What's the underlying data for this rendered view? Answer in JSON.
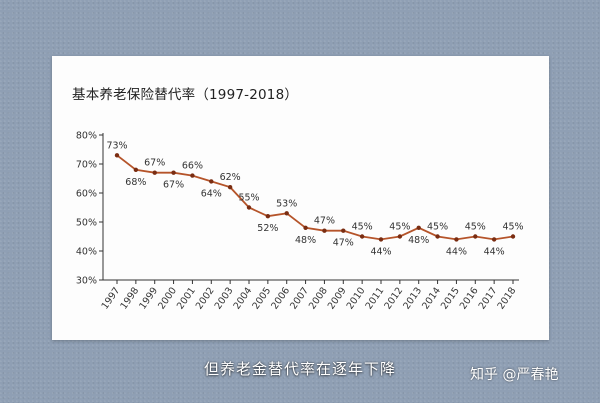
{
  "card": {
    "title": "基本养老保险替代率（1997-2018）"
  },
  "overlay": {
    "subtitle": "但养老金替代率在逐年下降",
    "watermark": "知乎 @严春艳"
  },
  "colors": {
    "line": "#b5542a",
    "point": "#7a2d12",
    "axis": "#333333",
    "background": "#8f9fb4"
  },
  "chart_data": {
    "type": "line",
    "title": "基本养老保险替代率（1997-2018）",
    "categories": [
      "1997",
      "1998",
      "1999",
      "2000",
      "2001",
      "2002",
      "2003",
      "2004",
      "2005",
      "2006",
      "2007",
      "2008",
      "2009",
      "2010",
      "2011",
      "2012",
      "2013",
      "2014",
      "2015",
      "2016",
      "2017",
      "2018"
    ],
    "values": [
      73,
      68,
      67,
      67,
      66,
      64,
      62,
      55,
      52,
      53,
      48,
      47,
      47,
      45,
      44,
      45,
      48,
      45,
      44,
      45,
      44,
      45
    ],
    "data_labels": [
      "73%",
      "68%",
      "67%",
      "67%",
      "66%",
      "64%",
      "62%",
      "55%",
      "52%",
      "53%",
      "48%",
      "47%",
      "47%",
      "45%",
      "44%",
      "45%",
      "48%",
      "45%",
      "44%",
      "45%",
      "44%",
      "45%"
    ],
    "label_positions": [
      "above",
      "below",
      "above",
      "below",
      "above",
      "below",
      "above",
      "above",
      "below",
      "above",
      "below",
      "above",
      "below",
      "above",
      "below",
      "above",
      "below",
      "above",
      "below",
      "above",
      "below",
      "above"
    ],
    "y_ticks": [
      30,
      40,
      50,
      60,
      70,
      80
    ],
    "y_tick_labels": [
      "30%",
      "40%",
      "50%",
      "60%",
      "70%",
      "80%"
    ],
    "ylim": [
      30,
      80
    ],
    "xlabel": "",
    "ylabel": "",
    "grid": false,
    "legend": "none"
  }
}
